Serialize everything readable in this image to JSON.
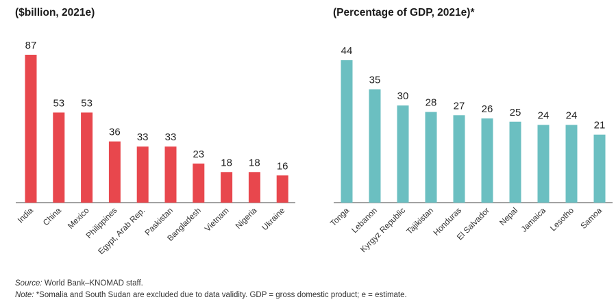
{
  "chart_data": [
    {
      "type": "bar",
      "title": "($billion, 2021e)",
      "categories": [
        "India",
        "China",
        "Mexico",
        "Philippines",
        "Egypt, Arab Rep.",
        "Paskistan",
        "Bangladesh",
        "Vietnam",
        "Nigeria",
        "Ukraine"
      ],
      "values": [
        87,
        53,
        53,
        36,
        33,
        33,
        23,
        18,
        18,
        16
      ],
      "color": "#e8474d",
      "ylim": [
        0,
        90
      ],
      "grid": false
    },
    {
      "type": "bar",
      "title": "(Percentage of GDP, 2021e)*",
      "categories": [
        "Tonga",
        "Lebanon",
        "Kyrgyz Republic",
        "Tajikistan",
        "Honduras",
        "El Salvador",
        "Nepal",
        "Jamaica",
        "Lesotho",
        "Samoa"
      ],
      "values": [
        44,
        35,
        30,
        28,
        27,
        26,
        25,
        24,
        24,
        21
      ],
      "color": "#6bbfc1",
      "ylim": [
        0,
        45
      ],
      "grid": false
    }
  ],
  "footer": {
    "source_label": "Source:",
    "source_text": " World Bank–KNOMAD staff.",
    "note_label": "Note:",
    "note_text": " *Somalia and South Sudan are excluded due to data validity. GDP = gross domestic product; e = estimate."
  }
}
